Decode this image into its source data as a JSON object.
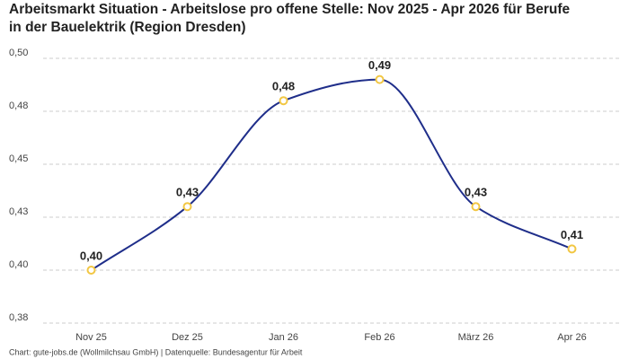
{
  "chart_data": {
    "type": "line",
    "title": "Arbeitsmarkt Situation - Arbeitslose pro offene Stelle: Nov 2025 - Apr 2026 für Berufe in der Bauelektrik (Region Dresden)",
    "source": "Chart: gute-jobs.de (Wollmilchsau GmbH) | Datenquelle: Bundesagentur für Arbeit",
    "categories": [
      "Nov 25",
      "Dez 25",
      "Jan 26",
      "Feb 26",
      "März 26",
      "Apr 26"
    ],
    "values": [
      0.4,
      0.43,
      0.48,
      0.49,
      0.43,
      0.41
    ],
    "value_labels": [
      "0,40",
      "0,43",
      "0,48",
      "0,49",
      "0,43",
      "0,41"
    ],
    "color": "#1f2e8a",
    "marker_color": "#f2c744",
    "ylim": [
      0.375,
      0.5
    ],
    "yticks": [
      {
        "value": 0.375,
        "label": "0,38"
      },
      {
        "value": 0.4,
        "label": "0,40"
      },
      {
        "value": 0.425,
        "label": "0,43"
      },
      {
        "value": 0.45,
        "label": "0,45"
      },
      {
        "value": 0.475,
        "label": "0,48"
      },
      {
        "value": 0.5,
        "label": "0,50"
      }
    ],
    "grid": true
  }
}
